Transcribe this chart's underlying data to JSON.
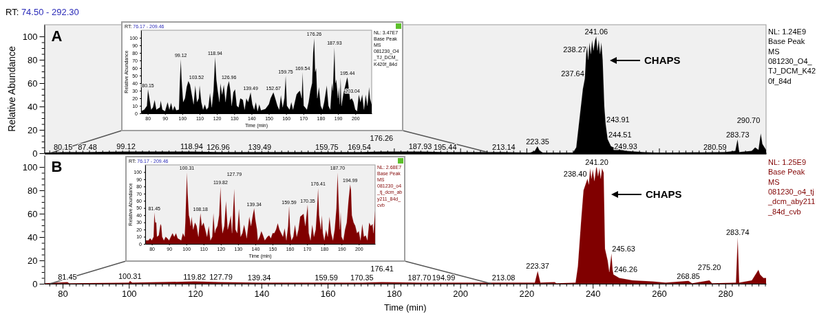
{
  "chart_data": [
    {
      "type": "area",
      "title": "RT: 74.50 - 292.30",
      "ylabel": "Relative Abundance",
      "color": "#000000",
      "tick_labels": "y",
      "x": [
        74.5,
        80,
        87.5,
        99,
        119,
        127,
        139,
        150,
        160,
        170,
        176,
        188,
        195,
        213,
        221,
        222.5,
        223.3,
        224,
        225,
        234,
        235,
        236,
        237,
        237.6,
        238,
        238.3,
        238.6,
        239,
        239.4,
        239.8,
        240.2,
        240.7,
        241.06,
        241.4,
        241.8,
        242.2,
        242.6,
        243,
        243.5,
        243.9,
        244.5,
        245.5,
        247,
        250,
        255,
        260,
        280,
        283,
        283.7,
        284.2,
        288,
        289,
        290,
        290.7,
        291.2,
        292.3
      ],
      "values": [
        0.5,
        1,
        1,
        1.5,
        1.5,
        1,
        1,
        1,
        1,
        1,
        1.5,
        1.5,
        1,
        1,
        0.5,
        2,
        6,
        2,
        0.5,
        0.5,
        5,
        30,
        55,
        64,
        85,
        92,
        80,
        95,
        85,
        97,
        88,
        97,
        100,
        88,
        97,
        85,
        95,
        80,
        40,
        25,
        12,
        6,
        4,
        2,
        1,
        0.5,
        1,
        2,
        12,
        1,
        2,
        5,
        3,
        17,
        8,
        3
      ],
      "xlim": [
        74.5,
        292.3
      ],
      "ylim": [
        0,
        110
      ],
      "xticks": [
        {
          "value": 76,
          "label": null
        },
        {
          "value": 78,
          "label": null
        },
        80,
        {
          "value": 82,
          "label": null
        },
        {
          "value": 84,
          "label": null
        },
        {
          "value": 86,
          "label": null
        },
        {
          "value": 88,
          "label": null
        },
        {
          "value": 90,
          "label": null
        },
        {
          "value": 92,
          "label": null
        },
        {
          "value": 94,
          "label": null
        },
        {
          "value": 96,
          "label": null
        },
        {
          "value": 98,
          "label": null
        },
        100,
        {
          "value": 102,
          "label": null
        },
        {
          "value": 104,
          "label": null
        },
        {
          "value": 106,
          "label": null
        },
        {
          "value": 108,
          "label": null
        },
        {
          "value": 110,
          "label": null
        },
        {
          "value": 112,
          "label": null
        },
        {
          "value": 114,
          "label": null
        },
        {
          "value": 116,
          "label": null
        },
        {
          "value": 118,
          "label": null
        },
        120,
        {
          "value": 122,
          "label": null
        },
        {
          "value": 124,
          "label": null
        },
        {
          "value": 126,
          "label": null
        },
        {
          "value": 128,
          "label": null
        },
        {
          "value": 130,
          "label": null
        },
        {
          "value": 132,
          "label": null
        },
        {
          "value": 134,
          "label": null
        },
        {
          "value": 136,
          "label": null
        },
        {
          "value": 138,
          "label": null
        },
        140,
        {
          "value": 142,
          "label": null
        },
        {
          "value": 144,
          "label": null
        },
        {
          "value": 146,
          "label": null
        },
        {
          "value": 148,
          "label": null
        },
        {
          "value": 150,
          "label": null
        },
        {
          "value": 152,
          "label": null
        },
        {
          "value": 154,
          "label": null
        },
        {
          "value": 156,
          "label": null
        },
        {
          "value": 158,
          "label": null
        },
        160,
        {
          "value": 162,
          "label": null
        },
        {
          "value": 164,
          "label": null
        },
        {
          "value": 166,
          "label": null
        },
        {
          "value": 168,
          "label": null
        },
        {
          "value": 170,
          "label": null
        },
        {
          "value": 172,
          "label": null
        },
        {
          "value": 174,
          "label": null
        },
        {
          "value": 176,
          "label": null
        },
        {
          "value": 178,
          "label": null
        },
        180,
        {
          "value": 182,
          "label": null
        },
        {
          "value": 184,
          "label": null
        },
        {
          "value": 186,
          "label": null
        },
        {
          "value": 188,
          "label": null
        },
        {
          "value": 190,
          "label": null
        },
        {
          "value": 192,
          "label": null
        },
        {
          "value": 194,
          "label": null
        },
        {
          "value": 196,
          "label": null
        },
        {
          "value": 198,
          "label": null
        },
        200,
        {
          "value": 202,
          "label": null
        },
        {
          "value": 204,
          "label": null
        },
        {
          "value": 206,
          "label": null
        },
        {
          "value": 208,
          "label": null
        },
        {
          "value": 210,
          "label": null
        },
        {
          "value": 212,
          "label": null
        },
        {
          "value": 214,
          "label": null
        },
        {
          "value": 216,
          "label": null
        },
        {
          "value": 218,
          "label": null
        },
        220,
        {
          "value": 222,
          "label": null
        },
        {
          "value": 224,
          "label": null
        },
        {
          "value": 226,
          "label": null
        },
        {
          "value": 228,
          "label": null
        },
        {
          "value": 230,
          "label": null
        },
        {
          "value": 232,
          "label": null
        },
        {
          "value": 234,
          "label": null
        },
        {
          "value": 236,
          "label": null
        },
        {
          "value": 238,
          "label": null
        },
        240,
        {
          "value": 242,
          "label": null
        },
        {
          "value": 244,
          "label": null
        },
        {
          "value": 246,
          "label": null
        },
        {
          "value": 248,
          "label": null
        },
        {
          "value": 250,
          "label": null
        },
        {
          "value": 252,
          "label": null
        },
        {
          "value": 254,
          "label": null
        },
        {
          "value": 256,
          "label": null
        },
        {
          "value": 258,
          "label": null
        },
        260,
        {
          "value": 262,
          "label": null
        },
        {
          "value": 264,
          "label": null
        },
        {
          "value": 266,
          "label": null
        },
        {
          "value": 268,
          "label": null
        },
        {
          "value": 270,
          "label": null
        },
        {
          "value": 272,
          "label": null
        },
        {
          "value": 274,
          "label": null
        },
        {
          "value": 276,
          "label": null
        },
        {
          "value": 278,
          "label": null
        },
        280,
        {
          "value": 282,
          "label": null
        },
        {
          "value": 284,
          "label": null
        },
        {
          "value": 286,
          "label": null
        },
        {
          "value": 288,
          "label": null
        },
        {
          "value": 290,
          "label": null
        },
        {
          "value": 292,
          "label": null
        }
      ],
      "yticks": [
        0,
        {
          "value": 5,
          "label": null
        },
        {
          "value": 10,
          "label": null
        },
        {
          "value": 15,
          "label": null
        },
        20,
        {
          "value": 25,
          "label": null
        },
        {
          "value": 30,
          "label": null
        },
        {
          "value": 35,
          "label": null
        },
        40,
        {
          "value": 45,
          "label": null
        },
        {
          "value": 50,
          "label": null
        },
        {
          "value": 55,
          "label": null
        },
        60,
        {
          "value": 65,
          "label": null
        },
        {
          "value": 70,
          "label": null
        },
        {
          "value": 75,
          "label": null
        },
        80,
        {
          "value": 85,
          "label": null
        },
        {
          "value": 90,
          "label": null
        },
        {
          "value": 95,
          "label": null
        },
        100
      ],
      "annotations": [
        "A",
        "CHAPS",
        "NL: 1.24E9",
        "Base Peak MS",
        "081230_O4_TJ_DCM_K420f_84d",
        {
          "text": "80.15",
          "x": 80.15,
          "y": 1
        },
        {
          "text": "87.48",
          "x": 87.48,
          "y": 1
        },
        {
          "text": "99.12",
          "x": 99.12,
          "y": 1.5
        },
        {
          "text": "118.94",
          "x": 118.94,
          "y": 1.5
        },
        {
          "text": "126.96",
          "x": 126.96,
          "y": 1
        },
        {
          "text": "139.49",
          "x": 139.49,
          "y": 1
        },
        {
          "text": "159.75",
          "x": 159.75,
          "y": 1
        },
        {
          "text": "169.54",
          "x": 169.54,
          "y": 1
        },
        {
          "text": "176.26",
          "x": 176.26,
          "y": 1.5
        },
        {
          "text": "187.93",
          "x": 187.93,
          "y": 1.5
        },
        {
          "text": "195.44",
          "x": 195.44,
          "y": 1
        },
        {
          "text": "213.14",
          "x": 213.14,
          "y": 1
        },
        {
          "text": "223.35",
          "x": 223.35,
          "y": 6
        },
        {
          "text": "237.64",
          "x": 237.64,
          "y": 64
        },
        {
          "text": "238.27",
          "x": 238.27,
          "y": 85
        },
        {
          "text": "241.06",
          "x": 241.06,
          "y": 100
        },
        {
          "text": "243.91",
          "x": 243.91,
          "y": 25
        },
        {
          "text": "244.51",
          "x": 244.51,
          "y": 12
        },
        {
          "text": "249.93",
          "x": 249.93,
          "y": 2
        },
        {
          "text": "280.59",
          "x": 280.59,
          "y": 1
        },
        {
          "text": "283.73",
          "x": 283.73,
          "y": 12
        },
        {
          "text": "290.70",
          "x": 290.7,
          "y": 17
        }
      ]
    },
    {
      "type": "area",
      "title": "RT: 76.17 - 209.46",
      "xlabel": "Time (min)",
      "ylabel": "Relative Abundance",
      "color": "#000000",
      "x": [
        76.17,
        78,
        79.5,
        80.15,
        81,
        82,
        83,
        84,
        85,
        87,
        87.5,
        88.5,
        90,
        91.5,
        92.5,
        93.5,
        94.5,
        95.5,
        96.5,
        98,
        98.5,
        99.12,
        99.6,
        100.5,
        101.5,
        102.5,
        103.5,
        104.5,
        105.5,
        106.5,
        107.5,
        108.5,
        109.5,
        110,
        111,
        112,
        113,
        114,
        115,
        116,
        117,
        118,
        118.94,
        119.7,
        120.5,
        121.5,
        122,
        123,
        124,
        125,
        126,
        126.96,
        127.8,
        128.5,
        129.5,
        130.5,
        131.5,
        132.5,
        133.5,
        135,
        136,
        137,
        138,
        139.49,
        140.5,
        141.5,
        142.5,
        143.5,
        144.5,
        145.5,
        148,
        150,
        151,
        152.67,
        154,
        155,
        156,
        157,
        158,
        159,
        159.75,
        160.5,
        162,
        163,
        164,
        165,
        166,
        167,
        168,
        169,
        169.54,
        170.2,
        171,
        172,
        173,
        174,
        175,
        175.6,
        176.26,
        176.8,
        177.4,
        178,
        179,
        180,
        181,
        182,
        183.5,
        184.5,
        185.5,
        186.5,
        187,
        187.93,
        188.5,
        189,
        190,
        190.5,
        191,
        191.5,
        192,
        193,
        194,
        195,
        195.44,
        196,
        197,
        198,
        199,
        200,
        201,
        202,
        203,
        204,
        205,
        206,
        207,
        208,
        208.5,
        209.46
      ],
      "values": [
        3,
        5,
        10,
        32,
        20,
        5,
        8,
        18,
        5,
        8,
        17,
        5,
        3,
        15,
        5,
        14,
        4,
        10,
        4,
        5,
        40,
        72,
        45,
        15,
        20,
        35,
        43,
        38,
        25,
        12,
        37,
        15,
        20,
        37,
        15,
        5,
        12,
        5,
        8,
        27,
        8,
        30,
        75,
        45,
        30,
        15,
        40,
        25,
        38,
        15,
        35,
        43,
        30,
        10,
        28,
        32,
        10,
        8,
        20,
        18,
        5,
        20,
        15,
        28,
        12,
        5,
        15,
        3,
        12,
        4,
        6,
        12,
        20,
        28,
        18,
        10,
        5,
        24,
        8,
        20,
        50,
        10,
        5,
        15,
        5,
        15,
        25,
        28,
        30,
        20,
        55,
        10,
        8,
        5,
        15,
        30,
        40,
        80,
        100,
        55,
        60,
        20,
        35,
        10,
        5,
        15,
        37,
        10,
        5,
        40,
        30,
        88,
        40,
        45,
        20,
        35,
        12,
        48,
        10,
        25,
        35,
        45,
        48,
        38,
        18,
        20,
        15,
        5,
        3,
        25,
        15,
        25,
        5,
        25,
        10,
        35,
        20,
        12
      ],
      "xlim": [
        76.17,
        209.46
      ],
      "ylim": [
        0,
        110
      ],
      "xticks": [
        80,
        90,
        100,
        110,
        120,
        130,
        140,
        150,
        160,
        170,
        180,
        190,
        200
      ],
      "yticks": [
        0,
        10,
        20,
        30,
        40,
        50,
        60,
        70,
        80,
        90,
        100
      ],
      "annotations": [
        "NL: 3.47E7",
        "Base Peak MS",
        "081230_O4_TJ_DCM_K420f_84d",
        {
          "text": "80.15",
          "x": 80.15,
          "y": 32
        },
        {
          "text": "99.12",
          "x": 99.12,
          "y": 72
        },
        {
          "text": "103.52",
          "x": 103.52,
          "y": 43
        },
        {
          "text": "118.94",
          "x": 118.94,
          "y": 75
        },
        {
          "text": "126.96",
          "x": 126.96,
          "y": 43
        },
        {
          "text": "139.49",
          "x": 139.49,
          "y": 28
        },
        {
          "text": "152.67",
          "x": 152.67,
          "y": 28
        },
        {
          "text": "159.75",
          "x": 159.75,
          "y": 50
        },
        {
          "text": "169.54",
          "x": 169.54,
          "y": 55
        },
        {
          "text": "176.26",
          "x": 176.26,
          "y": 100
        },
        {
          "text": "187.93",
          "x": 187.93,
          "y": 88
        },
        {
          "text": "195.44",
          "x": 195.44,
          "y": 48
        },
        {
          "text": "203.04",
          "x": 203.04,
          "y": 25
        }
      ]
    },
    {
      "type": "area",
      "xlabel": "Time (min)",
      "color": "#800000",
      "x": [
        74.5,
        81.45,
        82,
        100,
        100.31,
        101,
        119.82,
        127.79,
        139.34,
        159.59,
        170.35,
        176.41,
        187.7,
        194.99,
        213.08,
        222.5,
        223.37,
        224.2,
        228.5,
        229,
        234.8,
        235.5,
        236.5,
        237.2,
        237.8,
        238.4,
        238.8,
        239.2,
        239.6,
        240,
        240.5,
        241,
        241.2,
        241.6,
        242,
        242.4,
        242.8,
        243.3,
        243.7,
        244.5,
        245,
        245.63,
        246,
        246.26,
        248,
        252,
        258,
        262,
        268.85,
        270,
        275.2,
        276,
        283.2,
        283.74,
        284.2,
        288,
        290,
        290.5,
        291.5,
        292.3
      ],
      "values": [
        0.5,
        1.5,
        0.5,
        1,
        2.5,
        1,
        2,
        1.5,
        1,
        1,
        1,
        1.5,
        1,
        1,
        1,
        1,
        11,
        1,
        1.5,
        0.5,
        1,
        15,
        55,
        80,
        85,
        90,
        85,
        99,
        90,
        98,
        88,
        99,
        100,
        92,
        99,
        90,
        99,
        95,
        30,
        20,
        10,
        26,
        12,
        8,
        5,
        3,
        2,
        1,
        2.5,
        0.5,
        3,
        0.5,
        1,
        40,
        1,
        3,
        12,
        8,
        5,
        5
      ],
      "xlim": [
        74.5,
        292.3
      ],
      "ylim": [
        0,
        110
      ],
      "xticks": [
        {
          "value": 76,
          "label": null
        },
        {
          "value": 78,
          "label": null
        },
        80,
        {
          "value": 82,
          "label": null
        },
        {
          "value": 84,
          "label": null
        },
        {
          "value": 86,
          "label": null
        },
        {
          "value": 88,
          "label": null
        },
        {
          "value": 90,
          "label": null
        },
        {
          "value": 92,
          "label": null
        },
        {
          "value": 94,
          "label": null
        },
        {
          "value": 96,
          "label": null
        },
        {
          "value": 98,
          "label": null
        },
        100,
        {
          "value": 102,
          "label": null
        },
        {
          "value": 104,
          "label": null
        },
        {
          "value": 106,
          "label": null
        },
        {
          "value": 108,
          "label": null
        },
        {
          "value": 110,
          "label": null
        },
        {
          "value": 112,
          "label": null
        },
        {
          "value": 114,
          "label": null
        },
        {
          "value": 116,
          "label": null
        },
        {
          "value": 118,
          "label": null
        },
        120,
        {
          "value": 122,
          "label": null
        },
        {
          "value": 124,
          "label": null
        },
        {
          "value": 126,
          "label": null
        },
        {
          "value": 128,
          "label": null
        },
        {
          "value": 130,
          "label": null
        },
        {
          "value": 132,
          "label": null
        },
        {
          "value": 134,
          "label": null
        },
        {
          "value": 136,
          "label": null
        },
        {
          "value": 138,
          "label": null
        },
        140,
        {
          "value": 142,
          "label": null
        },
        {
          "value": 144,
          "label": null
        },
        {
          "value": 146,
          "label": null
        },
        {
          "value": 148,
          "label": null
        },
        {
          "value": 150,
          "label": null
        },
        {
          "value": 152,
          "label": null
        },
        {
          "value": 154,
          "label": null
        },
        {
          "value": 156,
          "label": null
        },
        {
          "value": 158,
          "label": null
        },
        160,
        {
          "value": 162,
          "label": null
        },
        {
          "value": 164,
          "label": null
        },
        {
          "value": 166,
          "label": null
        },
        {
          "value": 168,
          "label": null
        },
        {
          "value": 170,
          "label": null
        },
        {
          "value": 172,
          "label": null
        },
        {
          "value": 174,
          "label": null
        },
        {
          "value": 176,
          "label": null
        },
        {
          "value": 178,
          "label": null
        },
        180,
        {
          "value": 182,
          "label": null
        },
        {
          "value": 184,
          "label": null
        },
        {
          "value": 186,
          "label": null
        },
        {
          "value": 188,
          "label": null
        },
        {
          "value": 190,
          "label": null
        },
        {
          "value": 192,
          "label": null
        },
        {
          "value": 194,
          "label": null
        },
        {
          "value": 196,
          "label": null
        },
        {
          "value": 198,
          "label": null
        },
        200,
        {
          "value": 202,
          "label": null
        },
        {
          "value": 204,
          "label": null
        },
        {
          "value": 206,
          "label": null
        },
        {
          "value": 208,
          "label": null
        },
        {
          "value": 210,
          "label": null
        },
        {
          "value": 212,
          "label": null
        },
        {
          "value": 214,
          "label": null
        },
        {
          "value": 216,
          "label": null
        },
        {
          "value": 218,
          "label": null
        },
        220,
        {
          "value": 222,
          "label": null
        },
        {
          "value": 224,
          "label": null
        },
        {
          "value": 226,
          "label": null
        },
        {
          "value": 228,
          "label": null
        },
        {
          "value": 230,
          "label": null
        },
        {
          "value": 232,
          "label": null
        },
        {
          "value": 234,
          "label": null
        },
        {
          "value": 236,
          "label": null
        },
        {
          "value": 238,
          "label": null
        },
        240,
        {
          "value": 242,
          "label": null
        },
        {
          "value": 244,
          "label": null
        },
        {
          "value": 246,
          "label": null
        },
        {
          "value": 248,
          "label": null
        },
        {
          "value": 250,
          "label": null
        },
        {
          "value": 252,
          "label": null
        },
        {
          "value": 254,
          "label": null
        },
        {
          "value": 256,
          "label": null
        },
        {
          "value": 258,
          "label": null
        },
        260,
        {
          "value": 262,
          "label": null
        },
        {
          "value": 264,
          "label": null
        },
        {
          "value": 266,
          "label": null
        },
        {
          "value": 268,
          "label": null
        },
        {
          "value": 270,
          "label": null
        },
        {
          "value": 272,
          "label": null
        },
        {
          "value": 274,
          "label": null
        },
        {
          "value": 276,
          "label": null
        },
        {
          "value": 278,
          "label": null
        },
        280,
        {
          "value": 282,
          "label": null
        },
        {
          "value": 284,
          "label": null
        },
        {
          "value": 286,
          "label": null
        },
        {
          "value": 288,
          "label": null
        },
        {
          "value": 290,
          "label": null
        },
        {
          "value": 292,
          "label": null
        }
      ],
      "yticks": [
        0,
        {
          "value": 5,
          "label": null
        },
        {
          "value": 10,
          "label": null
        },
        {
          "value": 15,
          "label": null
        },
        20,
        {
          "value": 25,
          "label": null
        },
        {
          "value": 30,
          "label": null
        },
        {
          "value": 35,
          "label": null
        },
        40,
        {
          "value": 45,
          "label": null
        },
        {
          "value": 50,
          "label": null
        },
        {
          "value": 55,
          "label": null
        },
        60,
        {
          "value": 65,
          "label": null
        },
        {
          "value": 70,
          "label": null
        },
        {
          "value": 75,
          "label": null
        },
        80,
        {
          "value": 85,
          "label": null
        },
        {
          "value": 90,
          "label": null
        },
        {
          "value": 95,
          "label": null
        },
        100
      ],
      "annotations": [
        "B",
        "CHAPS",
        "NL: 1.25E9",
        "Base Peak MS",
        "081230_o4_tj_dcm_aby211_84d_cvb",
        {
          "text": "81.45",
          "x": 81.45,
          "y": 1.5
        },
        {
          "text": "100.31",
          "x": 100.31,
          "y": 2.5
        },
        {
          "text": "119.82",
          "x": 119.82,
          "y": 2
        },
        {
          "text": "127.79",
          "x": 127.79,
          "y": 1.5
        },
        {
          "text": "139.34",
          "x": 139.34,
          "y": 1
        },
        {
          "text": "159.59",
          "x": 159.59,
          "y": 1
        },
        {
          "text": "170.35",
          "x": 170.35,
          "y": 1
        },
        {
          "text": "176.41",
          "x": 176.41,
          "y": 1.5
        },
        {
          "text": "187.70",
          "x": 187.7,
          "y": 1
        },
        {
          "text": "194.99",
          "x": 194.99,
          "y": 1
        },
        {
          "text": "213.08",
          "x": 213.08,
          "y": 1
        },
        {
          "text": "223.37",
          "x": 223.37,
          "y": 11
        },
        {
          "text": "238.40",
          "x": 238.4,
          "y": 90
        },
        {
          "text": "241.20",
          "x": 241.2,
          "y": 100
        },
        {
          "text": "245.63",
          "x": 245.63,
          "y": 26
        },
        {
          "text": "246.26",
          "x": 246.26,
          "y": 8
        },
        {
          "text": "268.85",
          "x": 268.85,
          "y": 2.5
        },
        {
          "text": "275.20",
          "x": 275.2,
          "y": 3
        },
        {
          "text": "283.74",
          "x": 283.74,
          "y": 40
        }
      ]
    },
    {
      "type": "area",
      "title": "RT: 76.17 - 209.46",
      "xlabel": "Time (min)",
      "ylabel": "Relative Abundance",
      "color": "#800000",
      "x": [
        76.17,
        78,
        79,
        80,
        81,
        81.45,
        82,
        82.6,
        83,
        84,
        85,
        85.5,
        86,
        87,
        88,
        89,
        90,
        92,
        93,
        94,
        95,
        97,
        98,
        99,
        99.4,
        99.8,
        100.31,
        100.8,
        101.5,
        102,
        102.5,
        103,
        104,
        105,
        106,
        107,
        108.18,
        109,
        110,
        111,
        112,
        113,
        114,
        115,
        115.7,
        116.5,
        117,
        118,
        119,
        119.82,
        120.5,
        121,
        122,
        123,
        124,
        125,
        125.8,
        126.5,
        127.2,
        127.79,
        128.5,
        129.5,
        130.5,
        131.5,
        132.5,
        133.5,
        134.5,
        135,
        136.5,
        137.5,
        138.5,
        139.34,
        140,
        141,
        141.5,
        142.5,
        143.5,
        144.5,
        145.5,
        147,
        148,
        149,
        150,
        151,
        152,
        153,
        154,
        155,
        156,
        157,
        158,
        159,
        159.59,
        160.3,
        161,
        162,
        163,
        164,
        165,
        166,
        167,
        168,
        169,
        170.35,
        171,
        172,
        173,
        174,
        175,
        175.8,
        176.41,
        177,
        178,
        178.6,
        179.2,
        180,
        181,
        182,
        183,
        184,
        185,
        186,
        187,
        187.7,
        188.3,
        189,
        189.5,
        190,
        191,
        192,
        193,
        194,
        194.99,
        195.5,
        196,
        197,
        198,
        199,
        200,
        201,
        202,
        203,
        204,
        205,
        206,
        207,
        208,
        208.5,
        209.46
      ],
      "values": [
        5,
        5,
        8,
        5,
        10,
        44,
        30,
        30,
        10,
        12,
        28,
        25,
        10,
        5,
        10,
        8,
        5,
        15,
        10,
        15,
        8,
        5,
        15,
        10,
        30,
        60,
        100,
        70,
        40,
        35,
        25,
        38,
        20,
        30,
        25,
        10,
        43,
        25,
        30,
        20,
        10,
        25,
        5,
        10,
        43,
        15,
        20,
        25,
        40,
        80,
        30,
        15,
        25,
        60,
        20,
        30,
        40,
        15,
        50,
        77,
        20,
        15,
        49,
        10,
        15,
        27,
        15,
        8,
        38,
        25,
        40,
        50,
        35,
        20,
        5,
        10,
        18,
        12,
        5,
        10,
        12,
        8,
        15,
        15,
        20,
        29,
        20,
        15,
        10,
        22,
        5,
        25,
        53,
        15,
        5,
        10,
        27,
        10,
        20,
        38,
        40,
        42,
        25,
        55,
        15,
        5,
        27,
        10,
        20,
        50,
        78,
        40,
        20,
        40,
        15,
        5,
        20,
        10,
        38,
        15,
        5,
        20,
        50,
        100,
        60,
        20,
        45,
        10,
        5,
        20,
        30,
        60,
        83,
        75,
        40,
        30,
        25,
        15,
        18,
        5,
        28,
        10,
        12,
        5,
        30,
        25,
        28,
        15,
        47
      ],
      "xlim": [
        76.17,
        209.46
      ],
      "ylim": [
        0,
        110
      ],
      "xticks": [
        80,
        90,
        100,
        110,
        120,
        130,
        140,
        150,
        160,
        170,
        180,
        190,
        200
      ],
      "yticks": [
        0,
        10,
        20,
        30,
        40,
        50,
        60,
        70,
        80,
        90,
        100
      ],
      "annotations": [
        "NL: 2.68E7",
        "Base Peak MS",
        "081230_o4_tj_dcm_aby211_84d_cvb",
        {
          "text": "81.45",
          "x": 81.45,
          "y": 44
        },
        {
          "text": "100.31",
          "x": 100.31,
          "y": 100
        },
        {
          "text": "108.18",
          "x": 108.18,
          "y": 43
        },
        {
          "text": "119.82",
          "x": 119.82,
          "y": 80
        },
        {
          "text": "127.79",
          "x": 127.79,
          "y": 77
        },
        {
          "text": "139.34",
          "x": 139.34,
          "y": 50
        },
        {
          "text": "159.59",
          "x": 159.59,
          "y": 53
        },
        {
          "text": "170.35",
          "x": 170.35,
          "y": 55
        },
        {
          "text": "176.41",
          "x": 176.41,
          "y": 78
        },
        {
          "text": "187.70",
          "x": 187.7,
          "y": 100
        },
        {
          "text": "194.99",
          "x": 194.99,
          "y": 83
        }
      ]
    }
  ]
}
